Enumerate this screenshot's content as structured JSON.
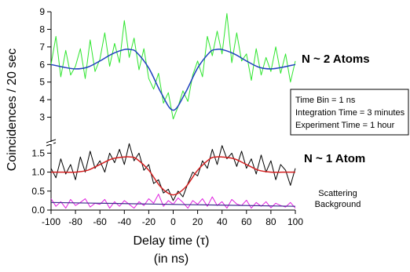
{
  "chart_data": {
    "type": "line",
    "title": "",
    "xlabel": "Delay time (τ)",
    "xlabel_unit": "(in ns)",
    "ylabel": "Coincidences / 20 sec",
    "xlim": [
      -100,
      100
    ],
    "x_ticks": [
      -100,
      -80,
      -60,
      -40,
      -20,
      0,
      20,
      40,
      60,
      80,
      100
    ],
    "panels": {
      "upper": {
        "ylim": [
          2.4,
          9
        ],
        "y_ticks": [
          3,
          4,
          5,
          6,
          7,
          8,
          9
        ],
        "annotation": "N ~ 2 Atoms",
        "fit": {
          "name": "",
          "color": "#1f3fbf",
          "x": [
            -100,
            -90,
            -80,
            -70,
            -60,
            -50,
            -40,
            -35,
            -30,
            -20,
            -10,
            0,
            10,
            20,
            30,
            35,
            40,
            50,
            60,
            70,
            80,
            90,
            100
          ],
          "y": [
            6.0,
            5.85,
            5.75,
            5.85,
            6.2,
            6.6,
            6.85,
            6.85,
            6.7,
            5.8,
            4.4,
            3.4,
            4.4,
            5.8,
            6.7,
            6.85,
            6.85,
            6.6,
            6.2,
            5.85,
            5.75,
            5.85,
            6.0
          ]
        },
        "data_series": {
          "name": "",
          "color": "#2ee52e",
          "x": [
            -100,
            -96,
            -92,
            -88,
            -84,
            -80,
            -76,
            -72,
            -68,
            -64,
            -60,
            -56,
            -52,
            -48,
            -44,
            -40,
            -36,
            -32,
            -28,
            -24,
            -20,
            -16,
            -12,
            -8,
            -4,
            0,
            4,
            8,
            12,
            16,
            20,
            24,
            28,
            32,
            36,
            40,
            44,
            48,
            52,
            56,
            60,
            64,
            68,
            72,
            76,
            80,
            84,
            88,
            92,
            96,
            100
          ],
          "y": [
            6.0,
            7.6,
            5.3,
            6.8,
            5.4,
            5.9,
            6.9,
            5.2,
            7.4,
            5.6,
            6.3,
            7.8,
            5.9,
            7.2,
            6.1,
            8.5,
            6.4,
            7.5,
            5.7,
            6.9,
            5.2,
            4.6,
            5.5,
            3.8,
            4.4,
            2.9,
            3.6,
            4.5,
            3.9,
            5.4,
            6.2,
            5.3,
            7.6,
            6.5,
            7.9,
            6.6,
            8.9,
            6.1,
            7.8,
            6.2,
            6.6,
            5.1,
            6.9,
            5.4,
            6.4,
            5.6,
            7.0,
            5.5,
            6.6,
            5.0,
            6.2
          ]
        }
      },
      "lower": {
        "ylim": [
          0,
          1.9
        ],
        "y_ticks": [
          0.0,
          0.5,
          1.0,
          1.5
        ],
        "annotation": "N ~ 1 Atom",
        "fit": {
          "name": "",
          "color": "#d42020",
          "x": [
            -100,
            -90,
            -80,
            -70,
            -60,
            -50,
            -40,
            -35,
            -30,
            -20,
            -10,
            0,
            10,
            20,
            30,
            35,
            40,
            50,
            60,
            70,
            80,
            90,
            100
          ],
          "y": [
            1.0,
            1.0,
            1.0,
            1.05,
            1.2,
            1.35,
            1.4,
            1.4,
            1.35,
            1.05,
            0.6,
            0.4,
            0.6,
            1.05,
            1.35,
            1.4,
            1.4,
            1.35,
            1.2,
            1.05,
            1.0,
            1.0,
            1.0
          ]
        },
        "data_series": {
          "name": "",
          "color": "#000000",
          "x": [
            -100,
            -96,
            -92,
            -88,
            -84,
            -80,
            -76,
            -72,
            -68,
            -64,
            -60,
            -56,
            -52,
            -48,
            -44,
            -40,
            -36,
            -32,
            -28,
            -24,
            -20,
            -16,
            -12,
            -8,
            -4,
            0,
            4,
            8,
            12,
            16,
            20,
            24,
            28,
            32,
            36,
            40,
            44,
            48,
            52,
            56,
            60,
            64,
            68,
            72,
            76,
            80,
            84,
            88,
            92,
            96,
            100
          ],
          "y": [
            1.1,
            0.85,
            1.35,
            0.95,
            1.2,
            0.8,
            1.4,
            1.0,
            1.55,
            1.1,
            1.3,
            1.0,
            1.5,
            1.25,
            1.6,
            1.2,
            1.75,
            1.3,
            1.5,
            1.05,
            1.2,
            0.7,
            0.8,
            0.45,
            0.55,
            0.25,
            0.5,
            0.35,
            0.7,
            1.0,
            0.9,
            1.3,
            1.1,
            1.6,
            1.2,
            1.7,
            1.35,
            1.5,
            1.15,
            1.55,
            1.1,
            1.35,
            0.95,
            1.45,
            1.0,
            1.3,
            0.8,
            1.2,
            1.05,
            0.65,
            1.1
          ]
        },
        "background_series": {
          "name": "",
          "color": "#e020e0",
          "x": [
            -100,
            -96,
            -92,
            -88,
            -84,
            -80,
            -76,
            -72,
            -68,
            -64,
            -60,
            -56,
            -52,
            -48,
            -44,
            -40,
            -36,
            -32,
            -28,
            -24,
            -20,
            -16,
            -12,
            -8,
            -4,
            0,
            4,
            8,
            12,
            16,
            20,
            24,
            28,
            32,
            36,
            40,
            44,
            48,
            52,
            56,
            60,
            64,
            68,
            72,
            76,
            80,
            84,
            88,
            92,
            96,
            100
          ],
          "y": [
            0.3,
            0.1,
            0.22,
            0.05,
            0.28,
            0.12,
            0.2,
            0.3,
            0.08,
            0.18,
            0.15,
            0.28,
            0.05,
            0.22,
            0.1,
            0.25,
            0.15,
            0.05,
            0.22,
            0.12,
            0.3,
            0.18,
            0.42,
            0.1,
            0.25,
            0.15,
            0.32,
            0.2,
            0.05,
            0.25,
            0.15,
            0.3,
            0.1,
            0.35,
            0.12,
            0.22,
            0.05,
            0.28,
            0.16,
            0.12,
            0.26,
            0.05,
            0.2,
            0.1,
            0.22,
            0.06,
            0.18,
            0.12,
            0.08,
            0.2,
            0.05
          ]
        },
        "background_fit": {
          "name": "",
          "color": "#3a2a8a",
          "x": [
            -100,
            100
          ],
          "y": [
            0.2,
            0.1
          ]
        },
        "background_label": [
          "Scattering",
          "Background"
        ]
      }
    },
    "info_box": [
      "Time Bin = 1 ns",
      "Integration Time = 3 minutes",
      "Experiment Time = 1 hour"
    ],
    "grid": false,
    "legend": "none"
  }
}
